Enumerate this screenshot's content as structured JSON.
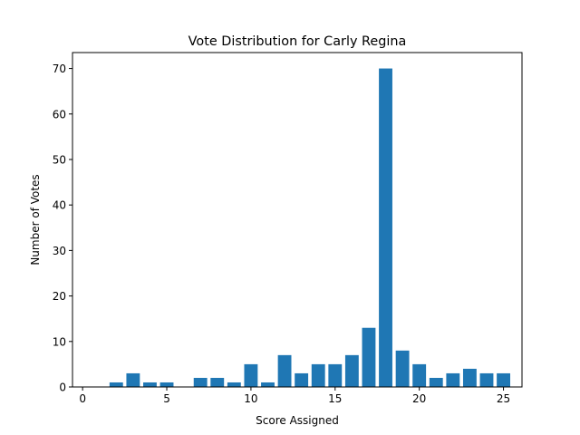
{
  "chart_data": {
    "type": "bar",
    "title": "Vote Distribution for Carly Regina",
    "xlabel": "Score Assigned",
    "ylabel": "Number of Votes",
    "x": [
      0,
      1,
      2,
      3,
      4,
      5,
      6,
      7,
      8,
      9,
      10,
      11,
      12,
      13,
      14,
      15,
      16,
      17,
      18,
      19,
      20,
      21,
      22,
      23,
      24,
      25
    ],
    "values": [
      0,
      0,
      1,
      3,
      1,
      1,
      0,
      2,
      2,
      1,
      5,
      1,
      7,
      3,
      5,
      5,
      7,
      13,
      70,
      8,
      5,
      2,
      3,
      4,
      3,
      3
    ],
    "xlim": [
      -0.6,
      26.1
    ],
    "ylim": [
      0,
      73.5
    ],
    "xticks": [
      0,
      5,
      10,
      15,
      20,
      25
    ],
    "yticks": [
      0,
      10,
      20,
      30,
      40,
      50,
      60,
      70
    ],
    "bar_color": "#1f77b4",
    "grid": false
  }
}
